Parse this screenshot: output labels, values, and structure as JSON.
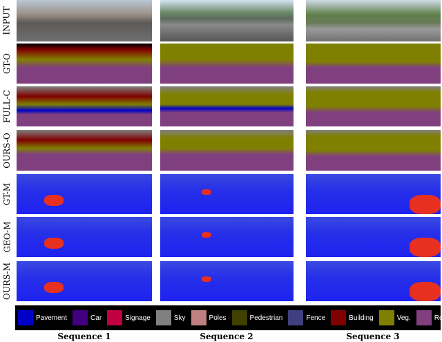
{
  "row_labels": [
    "INPUT",
    "GT-O",
    "FULL-C",
    "OURS-O",
    "GT-M",
    "GEO-M",
    "OURS-M"
  ],
  "columns": [
    "Sequence 1",
    "Sequence 2",
    "Sequence 3"
  ],
  "legend": [
    {
      "label": "Pavement",
      "color": "#0000c8"
    },
    {
      "label": "Car",
      "color": "#400080"
    },
    {
      "label": "Signage",
      "color": "#c00040"
    },
    {
      "label": "Sky",
      "color": "#808080"
    },
    {
      "label": "Poles",
      "color": "#c08080"
    },
    {
      "label": "Pedestrian",
      "color": "#404000"
    },
    {
      "label": "Fence",
      "color": "#404080"
    },
    {
      "label": "Building",
      "color": "#800000"
    },
    {
      "label": "Veg.",
      "color": "#808000"
    },
    {
      "label": "Road",
      "color": "#804080"
    }
  ]
}
